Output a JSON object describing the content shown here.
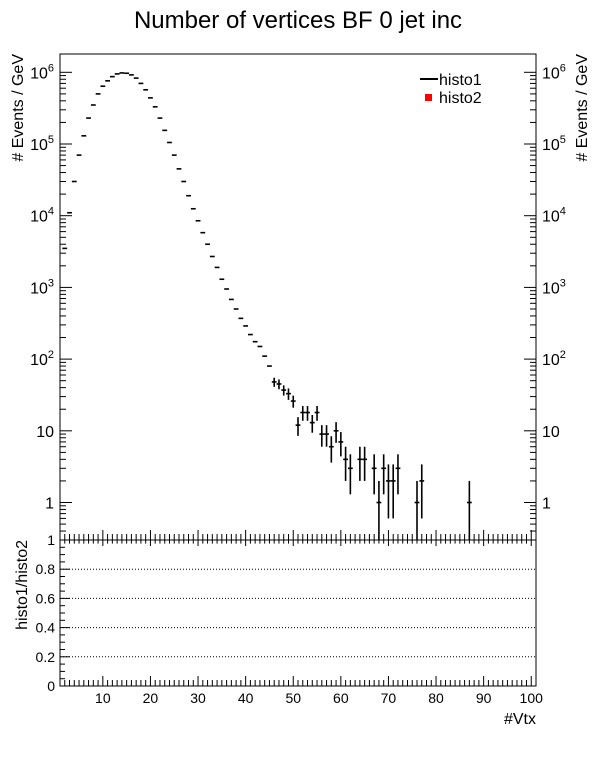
{
  "chart_data": [
    {
      "type": "scatter",
      "title": "Number of vertices BF 0 jet inc",
      "xlabel": "",
      "ylabel": "# Events / GeV",
      "y_scale": "log",
      "xlim": [
        1,
        101
      ],
      "ylim": [
        0.3,
        1800000
      ],
      "y_ticks": [
        {
          "value": 1000000,
          "base": "10",
          "exp": "6"
        },
        {
          "value": 100000,
          "base": "10",
          "exp": "5"
        },
        {
          "value": 10000,
          "base": "10",
          "exp": "4"
        },
        {
          "value": 1000,
          "base": "10",
          "exp": "3"
        },
        {
          "value": 100,
          "base": "10",
          "exp": "2"
        },
        {
          "value": 10,
          "base": "10",
          "exp": ""
        },
        {
          "value": 1,
          "base": "1",
          "exp": ""
        }
      ],
      "legend": {
        "placement": "top-right",
        "entries": [
          {
            "name": "histo1",
            "marker": "line",
            "color": "#000000"
          },
          {
            "name": "histo2",
            "marker": "square",
            "color": "#ff0000"
          }
        ]
      },
      "series": [
        {
          "name": "histo1",
          "color": "#000000",
          "points": [
            {
              "x": 2,
              "y": 3500
            },
            {
              "x": 3,
              "y": 11000
            },
            {
              "x": 4,
              "y": 30000
            },
            {
              "x": 5,
              "y": 70000
            },
            {
              "x": 6,
              "y": 130000
            },
            {
              "x": 7,
              "y": 230000
            },
            {
              "x": 8,
              "y": 350000
            },
            {
              "x": 9,
              "y": 500000
            },
            {
              "x": 10,
              "y": 640000
            },
            {
              "x": 11,
              "y": 760000
            },
            {
              "x": 12,
              "y": 870000
            },
            {
              "x": 13,
              "y": 950000
            },
            {
              "x": 14,
              "y": 980000
            },
            {
              "x": 15,
              "y": 970000
            },
            {
              "x": 16,
              "y": 920000
            },
            {
              "x": 17,
              "y": 830000
            },
            {
              "x": 18,
              "y": 700000
            },
            {
              "x": 19,
              "y": 570000
            },
            {
              "x": 20,
              "y": 440000
            },
            {
              "x": 21,
              "y": 330000
            },
            {
              "x": 22,
              "y": 230000
            },
            {
              "x": 23,
              "y": 155000
            },
            {
              "x": 24,
              "y": 105000
            },
            {
              "x": 25,
              "y": 70000
            },
            {
              "x": 26,
              "y": 45000
            },
            {
              "x": 27,
              "y": 30000
            },
            {
              "x": 28,
              "y": 19000
            },
            {
              "x": 29,
              "y": 12500
            },
            {
              "x": 30,
              "y": 8500
            },
            {
              "x": 31,
              "y": 5800
            },
            {
              "x": 32,
              "y": 4000
            },
            {
              "x": 33,
              "y": 2700
            },
            {
              "x": 34,
              "y": 1900
            },
            {
              "x": 35,
              "y": 1300
            },
            {
              "x": 36,
              "y": 950
            },
            {
              "x": 37,
              "y": 680
            },
            {
              "x": 38,
              "y": 500
            },
            {
              "x": 39,
              "y": 370
            },
            {
              "x": 40,
              "y": 290
            },
            {
              "x": 41,
              "y": 220
            },
            {
              "x": 42,
              "y": 175
            },
            {
              "x": 43,
              "y": 150
            },
            {
              "x": 44,
              "y": 110
            },
            {
              "x": 45,
              "y": 80
            },
            {
              "x": 46,
              "y": 48,
              "err": 7
            },
            {
              "x": 47,
              "y": 45,
              "err": 7
            },
            {
              "x": 48,
              "y": 37,
              "err": 6
            },
            {
              "x": 49,
              "y": 33,
              "err": 6
            },
            {
              "x": 50,
              "y": 26,
              "err": 5
            },
            {
              "x": 51,
              "y": 12,
              "err": 3.5
            },
            {
              "x": 52,
              "y": 18,
              "err": 4.2
            },
            {
              "x": 53,
              "y": 18,
              "err": 4.2
            },
            {
              "x": 54,
              "y": 13,
              "err": 3.6
            },
            {
              "x": 55,
              "y": 18,
              "err": 4.2
            },
            {
              "x": 56,
              "y": 9,
              "err": 3
            },
            {
              "x": 57,
              "y": 9,
              "err": 3
            },
            {
              "x": 58,
              "y": 6,
              "err": 2.4
            },
            {
              "x": 59,
              "y": 10,
              "err": 3.2
            },
            {
              "x": 60,
              "y": 7,
              "err": 2.6
            },
            {
              "x": 61,
              "y": 4,
              "err": 2
            },
            {
              "x": 62,
              "y": 3,
              "err": 1.7
            },
            {
              "x": 64,
              "y": 4,
              "err": 2
            },
            {
              "x": 65,
              "y": 4,
              "err": 2
            },
            {
              "x": 67,
              "y": 3,
              "err": 1.7
            },
            {
              "x": 68,
              "y": 1,
              "err": 1
            },
            {
              "x": 69,
              "y": 3,
              "err": 1.7
            },
            {
              "x": 70,
              "y": 2,
              "err": 1.4
            },
            {
              "x": 71,
              "y": 2,
              "err": 1.4
            },
            {
              "x": 72,
              "y": 3,
              "err": 1.7
            },
            {
              "x": 76,
              "y": 1,
              "err": 1
            },
            {
              "x": 77,
              "y": 2,
              "err": 1.4
            },
            {
              "x": 87,
              "y": 1,
              "err": 1
            }
          ]
        }
      ]
    },
    {
      "type": "line",
      "xlabel": "#Vtx",
      "ylabel": "histo1/histo2",
      "xlim": [
        1,
        101
      ],
      "ylim": [
        0,
        1.0
      ],
      "x_ticks": [
        10,
        20,
        30,
        40,
        50,
        60,
        70,
        80,
        90,
        100
      ],
      "y_ticks": [
        0,
        0.2,
        0.4,
        0.6,
        0.8,
        1
      ],
      "gridlines_y": [
        0.2,
        0.4,
        0.6,
        0.8
      ],
      "grid_style": "dotted",
      "series": []
    }
  ]
}
